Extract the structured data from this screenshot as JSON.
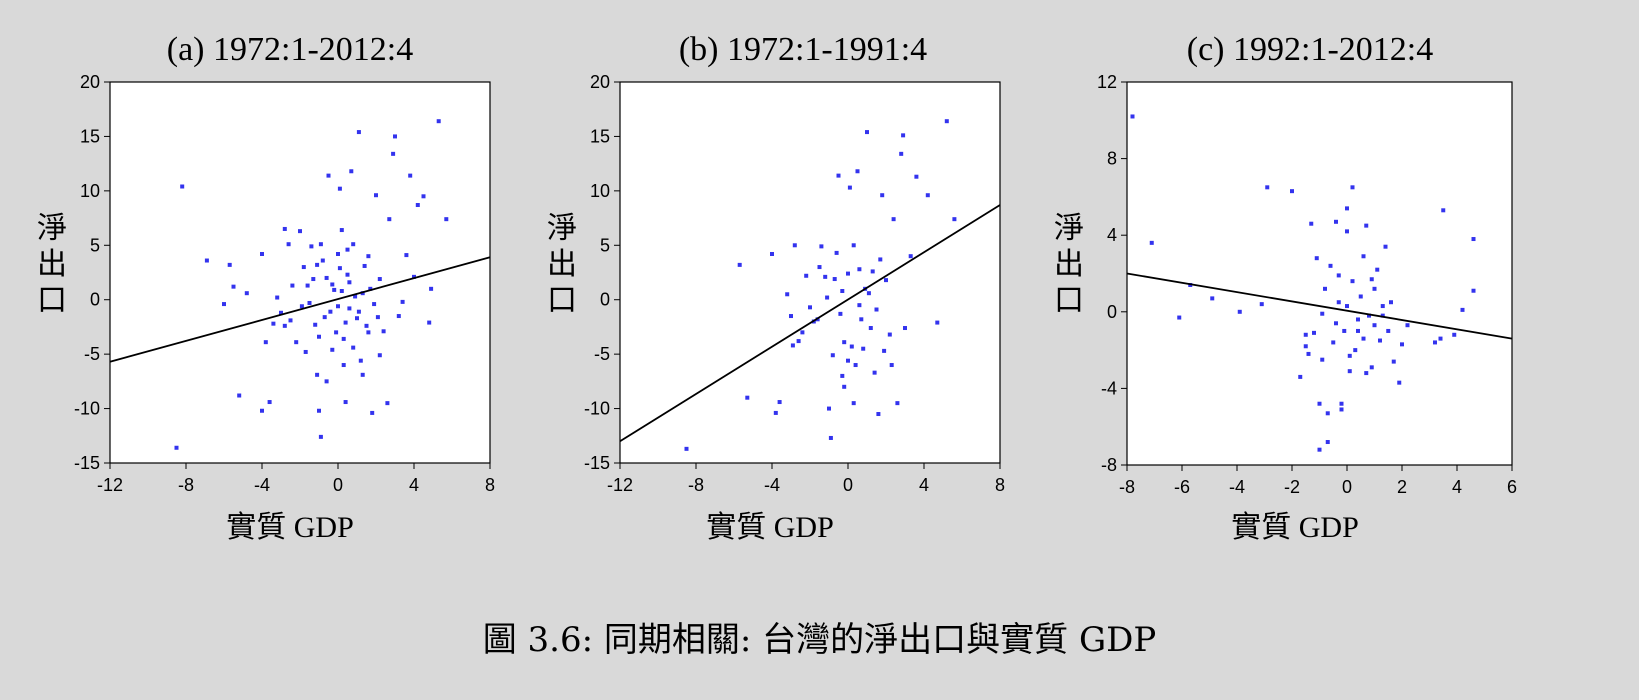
{
  "caption": "圖 3.6: 同期相關: 台灣的淨出口與實質 GDP",
  "colors": {
    "points": "#3333ee",
    "line": "#000000",
    "frame": "#000000",
    "background": "#d9d9d9",
    "plot_bg": "#ffffff"
  },
  "chart_data": [
    {
      "type": "scatter",
      "title": "(a) 1972:1-2012:4",
      "xlabel": "實質 GDP",
      "ylabel": "淨出口",
      "xlim": [
        -12,
        8
      ],
      "ylim": [
        -15,
        20
      ],
      "xticks": [
        "-12",
        "-8",
        "-4",
        "0",
        "4",
        "8"
      ],
      "yticks": [
        "20",
        "15",
        "10",
        "5",
        "0",
        "-5",
        "-10",
        "-15"
      ],
      "xtick_values": [
        -12,
        -8,
        -4,
        0,
        4,
        8
      ],
      "ytick_values": [
        20,
        15,
        10,
        5,
        0,
        -5,
        -10,
        -15
      ],
      "fit_line": [
        [
          -12,
          -5.7
        ],
        [
          8,
          3.9
        ]
      ],
      "points": [
        [
          -8.2,
          10.4
        ],
        [
          -6.9,
          3.6
        ],
        [
          -5.7,
          3.2
        ],
        [
          -5.5,
          1.2
        ],
        [
          -6.0,
          -0.4
        ],
        [
          -4.8,
          0.6
        ],
        [
          -5.2,
          -8.8
        ],
        [
          -8.5,
          -13.6
        ],
        [
          -4.0,
          4.2
        ],
        [
          -3.8,
          -3.9
        ],
        [
          -3.6,
          -9.4
        ],
        [
          -4.0,
          -10.2
        ],
        [
          -3.2,
          0.2
        ],
        [
          -3.0,
          -1.2
        ],
        [
          -2.8,
          6.5
        ],
        [
          -2.6,
          5.1
        ],
        [
          -2.5,
          -1.9
        ],
        [
          -2.2,
          -3.9
        ],
        [
          -2.0,
          6.3
        ],
        [
          -1.8,
          3.0
        ],
        [
          -1.6,
          1.3
        ],
        [
          -1.4,
          4.9
        ],
        [
          -1.2,
          -2.3
        ],
        [
          -1.1,
          -6.9
        ],
        [
          -1.0,
          -10.2
        ],
        [
          -0.9,
          -12.6
        ],
        [
          -0.8,
          3.6
        ],
        [
          -0.6,
          2.0
        ],
        [
          -0.5,
          11.4
        ],
        [
          -0.4,
          -1.1
        ],
        [
          -0.3,
          -4.6
        ],
        [
          -0.2,
          0.9
        ],
        [
          0.0,
          4.2
        ],
        [
          0.1,
          10.2
        ],
        [
          0.2,
          6.4
        ],
        [
          0.3,
          -3.6
        ],
        [
          0.4,
          -9.4
        ],
        [
          0.5,
          2.3
        ],
        [
          0.6,
          -0.8
        ],
        [
          0.7,
          11.8
        ],
        [
          0.8,
          5.1
        ],
        [
          1.0,
          -1.7
        ],
        [
          1.1,
          15.4
        ],
        [
          1.2,
          -5.6
        ],
        [
          1.4,
          3.1
        ],
        [
          1.6,
          -3.0
        ],
        [
          1.8,
          -10.4
        ],
        [
          2.0,
          9.6
        ],
        [
          2.2,
          1.9
        ],
        [
          2.4,
          -2.9
        ],
        [
          2.6,
          -9.5
        ],
        [
          2.7,
          7.4
        ],
        [
          2.9,
          13.4
        ],
        [
          3.0,
          15.0
        ],
        [
          3.2,
          -1.5
        ],
        [
          3.4,
          -0.2
        ],
        [
          3.6,
          4.1
        ],
        [
          3.8,
          11.4
        ],
        [
          4.0,
          2.1
        ],
        [
          4.2,
          8.7
        ],
        [
          4.5,
          9.5
        ],
        [
          4.8,
          -2.1
        ],
        [
          4.9,
          1.0
        ],
        [
          5.3,
          16.4
        ],
        [
          5.7,
          7.4
        ],
        [
          -3.4,
          -2.2
        ],
        [
          -2.4,
          1.3
        ],
        [
          -1.9,
          -0.6
        ],
        [
          -1.7,
          -4.8
        ],
        [
          -1.5,
          -0.3
        ],
        [
          -1.3,
          1.9
        ],
        [
          -0.7,
          -1.6
        ],
        [
          -0.3,
          1.4
        ],
        [
          0.0,
          -0.6
        ],
        [
          0.2,
          0.8
        ],
        [
          0.4,
          -2.1
        ],
        [
          0.6,
          1.6
        ],
        [
          0.9,
          0.3
        ],
        [
          1.1,
          -1.1
        ],
        [
          1.3,
          0.6
        ],
        [
          1.5,
          -2.4
        ],
        [
          1.7,
          1.0
        ],
        [
          1.9,
          -0.4
        ],
        [
          2.1,
          -1.6
        ],
        [
          -0.1,
          -3.0
        ],
        [
          -1.0,
          -3.4
        ],
        [
          0.8,
          -4.4
        ],
        [
          1.3,
          -6.9
        ],
        [
          -0.6,
          -7.5
        ],
        [
          0.3,
          -6.0
        ],
        [
          2.2,
          -5.1
        ],
        [
          -2.8,
          -2.4
        ],
        [
          -0.9,
          5.1
        ],
        [
          0.5,
          4.6
        ],
        [
          1.6,
          4.0
        ],
        [
          -1.1,
          3.2
        ],
        [
          0.1,
          2.9
        ]
      ]
    },
    {
      "type": "scatter",
      "title": "(b) 1972:1-1991:4",
      "xlabel": "實質 GDP",
      "ylabel": "淨出口",
      "xlim": [
        -12,
        8
      ],
      "ylim": [
        -15,
        20
      ],
      "xticks": [
        "-12",
        "-8",
        "-4",
        "0",
        "4",
        "8"
      ],
      "yticks": [
        "20",
        "15",
        "10",
        "5",
        "0",
        "-5",
        "-10",
        "-15"
      ],
      "xtick_values": [
        -12,
        -8,
        -4,
        0,
        4,
        8
      ],
      "ytick_values": [
        20,
        15,
        10,
        5,
        0,
        -5,
        -10,
        -15
      ],
      "fit_line": [
        [
          -12,
          -13.0
        ],
        [
          8,
          8.7
        ]
      ],
      "points": [
        [
          -8.5,
          -13.7
        ],
        [
          -5.7,
          3.2
        ],
        [
          -5.3,
          -9.0
        ],
        [
          -4.0,
          4.2
        ],
        [
          -3.8,
          -10.4
        ],
        [
          -3.6,
          -9.4
        ],
        [
          -3.2,
          0.5
        ],
        [
          -3.0,
          -1.5
        ],
        [
          -2.8,
          5.0
        ],
        [
          -2.6,
          -3.8
        ],
        [
          -2.2,
          2.2
        ],
        [
          -2.0,
          -0.7
        ],
        [
          -1.8,
          -2.0
        ],
        [
          -1.5,
          3.0
        ],
        [
          -1.4,
          4.9
        ],
        [
          -1.2,
          2.1
        ],
        [
          -1.0,
          -10.0
        ],
        [
          -0.9,
          -12.7
        ],
        [
          -0.8,
          -5.1
        ],
        [
          -0.6,
          4.3
        ],
        [
          -0.5,
          11.4
        ],
        [
          -0.4,
          -1.3
        ],
        [
          -0.3,
          -7.0
        ],
        [
          -0.2,
          -3.9
        ],
        [
          0.0,
          2.4
        ],
        [
          0.1,
          10.3
        ],
        [
          0.2,
          -4.3
        ],
        [
          0.3,
          -9.5
        ],
        [
          0.4,
          -6.0
        ],
        [
          0.5,
          11.8
        ],
        [
          0.6,
          2.8
        ],
        [
          0.7,
          -1.8
        ],
        [
          0.8,
          -4.5
        ],
        [
          1.0,
          15.4
        ],
        [
          1.1,
          0.6
        ],
        [
          1.2,
          -2.6
        ],
        [
          1.4,
          -6.7
        ],
        [
          1.6,
          -10.5
        ],
        [
          1.8,
          9.6
        ],
        [
          2.0,
          1.8
        ],
        [
          2.2,
          -3.2
        ],
        [
          2.4,
          7.4
        ],
        [
          2.6,
          -9.5
        ],
        [
          2.8,
          13.4
        ],
        [
          2.9,
          15.1
        ],
        [
          3.0,
          -2.6
        ],
        [
          3.3,
          4.0
        ],
        [
          3.6,
          11.3
        ],
        [
          4.2,
          9.6
        ],
        [
          4.7,
          -2.1
        ],
        [
          5.2,
          16.4
        ],
        [
          5.6,
          7.4
        ],
        [
          -0.7,
          1.9
        ],
        [
          0.9,
          1.0
        ],
        [
          1.5,
          -0.9
        ],
        [
          -1.6,
          -1.8
        ],
        [
          0.3,
          5.0
        ],
        [
          -0.2,
          -8.0
        ],
        [
          1.9,
          -4.7
        ],
        [
          -2.4,
          -3.0
        ],
        [
          0.6,
          -0.5
        ],
        [
          -1.1,
          0.2
        ],
        [
          1.3,
          2.6
        ],
        [
          -0.3,
          0.8
        ],
        [
          -2.9,
          -4.2
        ],
        [
          2.3,
          -6.0
        ],
        [
          0.0,
          -5.6
        ],
        [
          1.7,
          3.7
        ]
      ]
    },
    {
      "type": "scatter",
      "title": "(c) 1992:1-2012:4",
      "xlabel": "實質 GDP",
      "ylabel": "淨出口",
      "xlim": [
        -8,
        6
      ],
      "ylim": [
        -8,
        12
      ],
      "xticks": [
        "-8",
        "-6",
        "-4",
        "-2",
        "0",
        "2",
        "4",
        "6"
      ],
      "yticks": [
        "12",
        "8",
        "4",
        "0",
        "-4",
        "-8"
      ],
      "xtick_values": [
        -8,
        -6,
        -4,
        -2,
        0,
        2,
        4,
        6
      ],
      "ytick_values": [
        12,
        8,
        4,
        0,
        -4,
        -8
      ],
      "fit_line": [
        [
          -8,
          2.0
        ],
        [
          6,
          -1.4
        ]
      ],
      "points": [
        [
          -7.8,
          10.2
        ],
        [
          -7.1,
          3.6
        ],
        [
          -6.1,
          -0.3
        ],
        [
          -5.7,
          1.4
        ],
        [
          -4.9,
          0.7
        ],
        [
          -3.9,
          0.0
        ],
        [
          -3.1,
          0.4
        ],
        [
          -2.9,
          6.5
        ],
        [
          -2.0,
          6.3
        ],
        [
          -1.5,
          -1.8
        ],
        [
          -1.4,
          -2.2
        ],
        [
          -1.3,
          4.6
        ],
        [
          -1.2,
          -1.1
        ],
        [
          -1.1,
          2.8
        ],
        [
          -1.0,
          -4.8
        ],
        [
          -1.0,
          -7.2
        ],
        [
          -0.9,
          -0.1
        ],
        [
          -0.8,
          1.2
        ],
        [
          -0.7,
          -5.3
        ],
        [
          -0.7,
          -6.8
        ],
        [
          -0.6,
          2.4
        ],
        [
          -0.5,
          -1.6
        ],
        [
          -0.4,
          4.7
        ],
        [
          -0.3,
          1.9
        ],
        [
          -0.2,
          -4.8
        ],
        [
          -0.2,
          -5.1
        ],
        [
          -0.1,
          -1.0
        ],
        [
          0.0,
          0.3
        ],
        [
          0.0,
          4.2
        ],
        [
          0.0,
          5.4
        ],
        [
          0.1,
          -3.1
        ],
        [
          0.2,
          6.5
        ],
        [
          0.2,
          1.6
        ],
        [
          0.3,
          -2.0
        ],
        [
          0.4,
          -0.4
        ],
        [
          0.5,
          0.8
        ],
        [
          0.6,
          2.9
        ],
        [
          0.6,
          -1.4
        ],
        [
          0.7,
          4.5
        ],
        [
          0.8,
          -0.2
        ],
        [
          0.9,
          1.7
        ],
        [
          0.9,
          -2.9
        ],
        [
          1.0,
          -0.7
        ],
        [
          1.1,
          2.2
        ],
        [
          1.2,
          -1.5
        ],
        [
          1.3,
          0.3
        ],
        [
          1.4,
          3.4
        ],
        [
          1.5,
          -1.0
        ],
        [
          1.6,
          0.5
        ],
        [
          1.7,
          -2.6
        ],
        [
          1.9,
          -3.7
        ],
        [
          2.0,
          -1.7
        ],
        [
          2.2,
          -0.7
        ],
        [
          3.2,
          -1.6
        ],
        [
          3.4,
          -1.4
        ],
        [
          3.5,
          5.3
        ],
        [
          3.9,
          -1.2
        ],
        [
          4.2,
          0.1
        ],
        [
          4.6,
          3.8
        ],
        [
          4.6,
          1.1
        ],
        [
          -1.5,
          -1.2
        ],
        [
          -0.4,
          -0.6
        ],
        [
          0.4,
          -1.0
        ],
        [
          1.0,
          1.2
        ],
        [
          -0.9,
          -2.5
        ],
        [
          0.7,
          -3.2
        ],
        [
          -0.3,
          0.5
        ],
        [
          1.3,
          -0.2
        ],
        [
          -1.7,
          -3.4
        ],
        [
          0.1,
          -2.3
        ]
      ]
    }
  ]
}
